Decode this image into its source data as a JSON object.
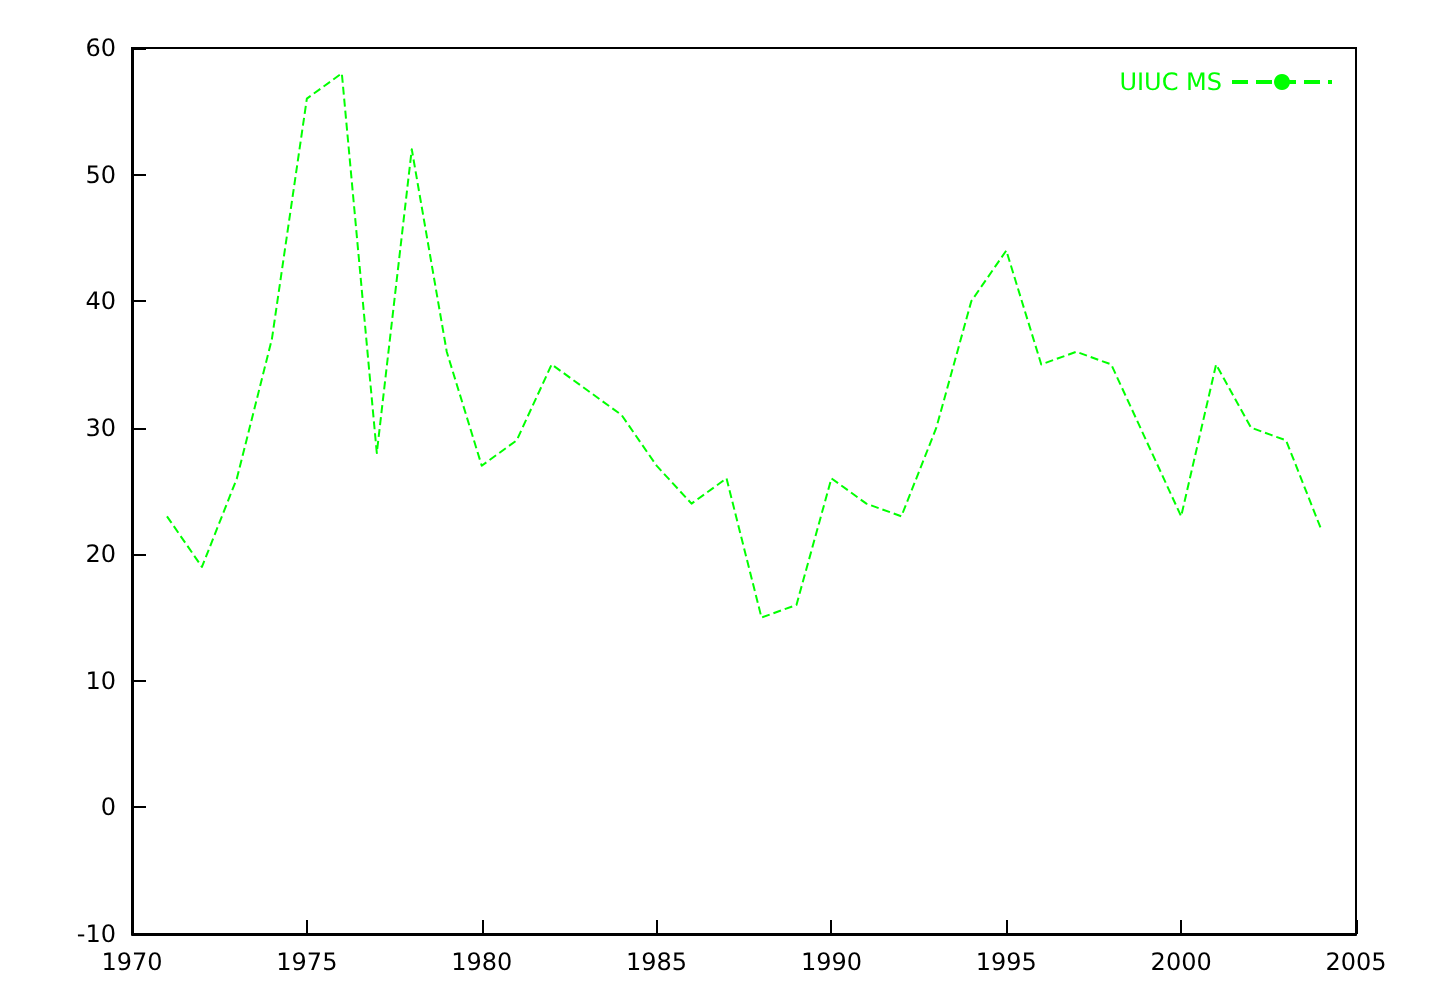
{
  "chart_data": {
    "type": "line",
    "x": [
      1971,
      1972,
      1973,
      1974,
      1975,
      1976,
      1977,
      1978,
      1979,
      1980,
      1981,
      1982,
      1983,
      1984,
      1985,
      1986,
      1987,
      1988,
      1989,
      1990,
      1991,
      1992,
      1993,
      1994,
      1995,
      1996,
      1997,
      1998,
      1999,
      2000,
      2001,
      2002,
      2003,
      2004
    ],
    "series": [
      {
        "name": "UIUC MS",
        "color": "#00ff00",
        "values": [
          23,
          19,
          26,
          37,
          56,
          58,
          28,
          52,
          36,
          27,
          29,
          35,
          33,
          31,
          27,
          24,
          26,
          15,
          16,
          26,
          24,
          23,
          30,
          40,
          44,
          35,
          36,
          35,
          29,
          23,
          35,
          30,
          29,
          22
        ]
      }
    ],
    "xlim": [
      1970,
      2005
    ],
    "xticks": [
      1970,
      1975,
      1980,
      1985,
      1990,
      1995,
      2000,
      2005
    ],
    "ylim": [
      -10,
      60
    ],
    "yticks": [
      -10,
      0,
      10,
      20,
      30,
      40,
      50,
      60
    ],
    "grid": false,
    "legend": "top right",
    "marker": "none",
    "line_style": "dashed"
  }
}
